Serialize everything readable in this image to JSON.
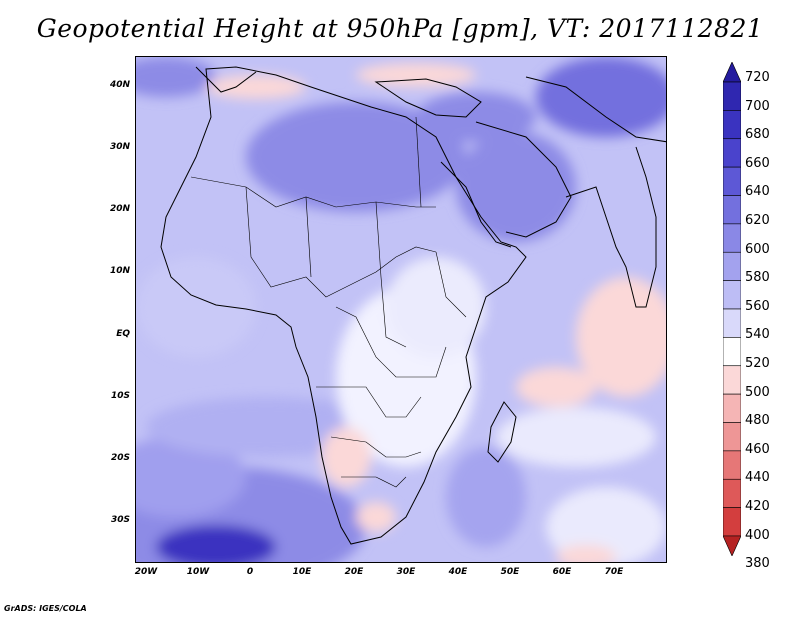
{
  "title": "Geopotential Height at 950hPa [gpm], VT: 2017112821",
  "credit": "GrADS: IGES/COLA",
  "map": {
    "lat_labels": [
      "40N",
      "30N",
      "20N",
      "10N",
      "EQ",
      "10S",
      "20S",
      "30S"
    ],
    "lon_labels": [
      "20W",
      "10W",
      "0",
      "10E",
      "20E",
      "30E",
      "40E",
      "50E",
      "60E",
      "70E"
    ]
  },
  "colorbar": {
    "levels": [
      "720",
      "700",
      "680",
      "660",
      "640",
      "620",
      "600",
      "580",
      "560",
      "540",
      "520",
      "500",
      "480",
      "460",
      "440",
      "420",
      "400",
      "380"
    ],
    "colors": [
      "#241b9e",
      "#2f27b0",
      "#3a33c0",
      "#4a43cc",
      "#5d58d6",
      "#7370de",
      "#8a88e6",
      "#a3a2ee",
      "#bdbdf5",
      "#d9d9fa",
      "#ffffff",
      "#fbd8d8",
      "#f5b5b5",
      "#ee9696",
      "#e67777",
      "#de5959",
      "#d33e3e",
      "#b52222"
    ]
  }
}
